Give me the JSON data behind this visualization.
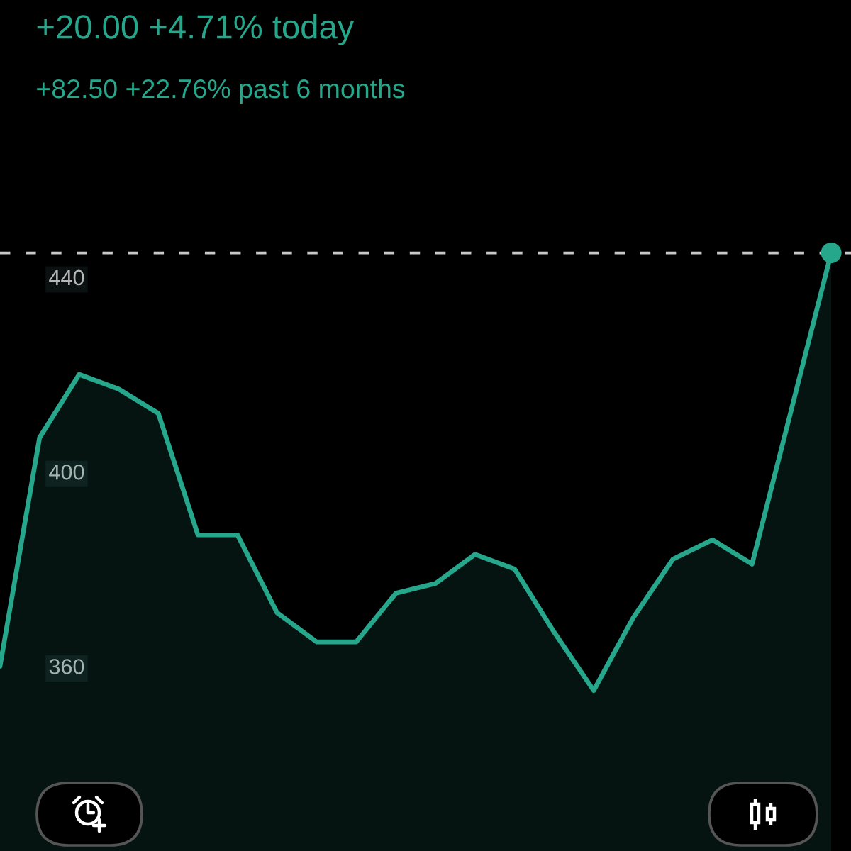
{
  "chart_data": {
    "type": "area",
    "title": "+20.00 +4.71% today",
    "subtitle": "+82.50 +22.76% past 6 months",
    "categories": [
      null,
      null,
      null,
      null,
      null,
      null,
      null,
      null,
      null,
      null,
      null,
      null,
      null,
      null,
      null,
      null,
      null,
      null,
      null,
      null,
      null,
      null
    ],
    "series": [
      {
        "color": "#26a68a",
        "values": [
          360,
          407,
          420,
          417,
          412,
          387,
          387,
          371,
          365,
          365,
          375,
          377,
          383,
          380,
          367,
          355,
          370,
          382,
          386,
          381,
          413,
          445
        ]
      },
      {
        "type": "scatter",
        "color": "#26a68a",
        "values": [
          null,
          null,
          null,
          null,
          null,
          null,
          null,
          null,
          null,
          null,
          null,
          null,
          null,
          null,
          null,
          null,
          null,
          null,
          null,
          null,
          null,
          445
        ]
      }
    ],
    "ylim": [
      322,
      497
    ],
    "yticks": [
      360,
      400,
      440
    ],
    "tick_labels": "y",
    "grid": false,
    "ref_lines": [
      {
        "axis": "y",
        "value": 445,
        "color": "#c8c8c8",
        "line_style": "dashed"
      }
    ]
  }
}
